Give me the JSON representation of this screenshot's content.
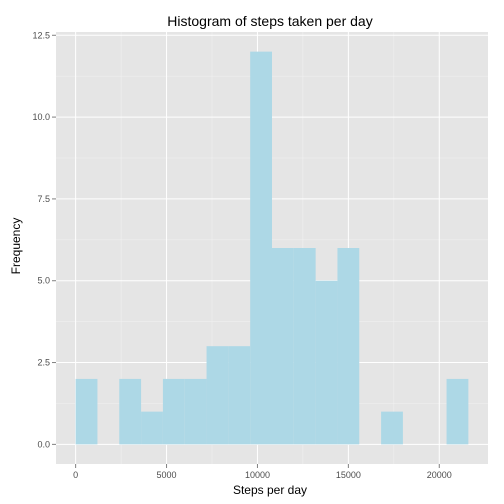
{
  "chart_data": {
    "type": "bar",
    "title": "Histogram of steps taken per day",
    "xlabel": "Steps per day",
    "ylabel": "Frequency",
    "bin_width": 1200,
    "bins": [
      {
        "x0": -0.0,
        "x1": 1200,
        "count": 2
      },
      {
        "x0": 1200,
        "x1": 2400,
        "count": 0
      },
      {
        "x0": 2400,
        "x1": 3600,
        "count": 2
      },
      {
        "x0": 3600,
        "x1": 4800,
        "count": 1
      },
      {
        "x0": 4800,
        "x1": 6000,
        "count": 2
      },
      {
        "x0": 6000,
        "x1": 7200,
        "count": 2
      },
      {
        "x0": 7200,
        "x1": 8400,
        "count": 3
      },
      {
        "x0": 8400,
        "x1": 9600,
        "count": 3
      },
      {
        "x0": 9600,
        "x1": 10800,
        "count": 12
      },
      {
        "x0": 10800,
        "x1": 12000,
        "count": 6
      },
      {
        "x0": 12000,
        "x1": 13200,
        "count": 6
      },
      {
        "x0": 13200,
        "x1": 14400,
        "count": 5
      },
      {
        "x0": 14400,
        "x1": 15600,
        "count": 6
      },
      {
        "x0": 15600,
        "x1": 16800,
        "count": 0
      },
      {
        "x0": 16800,
        "x1": 18000,
        "count": 1
      },
      {
        "x0": 18000,
        "x1": 19200,
        "count": 0
      },
      {
        "x0": 19200,
        "x1": 20400,
        "count": 0
      },
      {
        "x0": 20400,
        "x1": 21600,
        "count": 2
      }
    ],
    "xlim": [
      -1080,
      22680
    ],
    "ylim": [
      -0.6,
      12.6
    ],
    "x_ticks": [
      0,
      5000,
      10000,
      15000,
      20000
    ],
    "x_tick_labels": [
      "0",
      "5000",
      "10000",
      "15000",
      "20000"
    ],
    "y_ticks": [
      0,
      2.5,
      5,
      7.5,
      10,
      12.5
    ],
    "y_tick_labels": [
      "0.0",
      "2.5",
      "5.0",
      "7.5",
      "10.0",
      "12.5"
    ],
    "grid": true,
    "colors": {
      "bar_fill": "#add8e6",
      "panel_background": "#e5e5e5",
      "grid_major": "#ffffff",
      "grid_minor": "#f2f2f2"
    }
  }
}
